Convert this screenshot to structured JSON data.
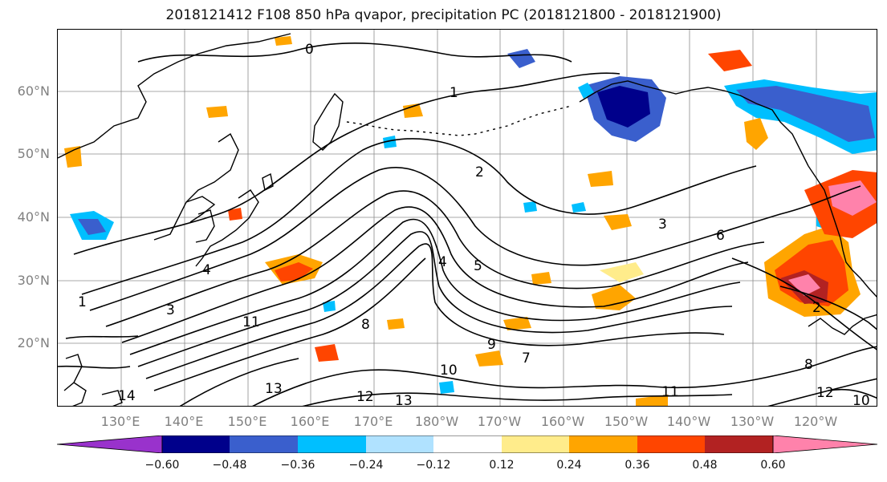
{
  "title": "2018121412 F108 850 hPa qvapor, precipitation PC (2018121800 - 2018121900)",
  "lat_labels": [
    "60°N",
    "50°N",
    "40°N",
    "30°N",
    "20°N"
  ],
  "lon_labels": [
    "130°E",
    "140°E",
    "150°E",
    "160°E",
    "170°E",
    "180°W",
    "170°W",
    "160°W",
    "150°W",
    "140°W",
    "130°W",
    "120°W"
  ],
  "colorbar": {
    "tick_labels": [
      "−0.60",
      "−0.48",
      "−0.36",
      "−0.24",
      "−0.12",
      "0.12",
      "0.24",
      "0.36",
      "0.48",
      "0.60"
    ],
    "colors": [
      "#9932CC",
      "#00008B",
      "#3A5FCD",
      "#00BFFF",
      "#B0E2FF",
      "#FFFFFF",
      "#FFEC8B",
      "#FFA500",
      "#FF4500",
      "#B22222",
      "#FF82AB"
    ]
  },
  "contour_labels": [
    "0",
    "1",
    "2",
    "3",
    "4",
    "5",
    "6",
    "7",
    "8",
    "9",
    "10",
    "11",
    "12",
    "13",
    "14"
  ],
  "colors": {
    "coastline": "#000000",
    "contour": "#000000",
    "grid": "#8c8c8c"
  }
}
